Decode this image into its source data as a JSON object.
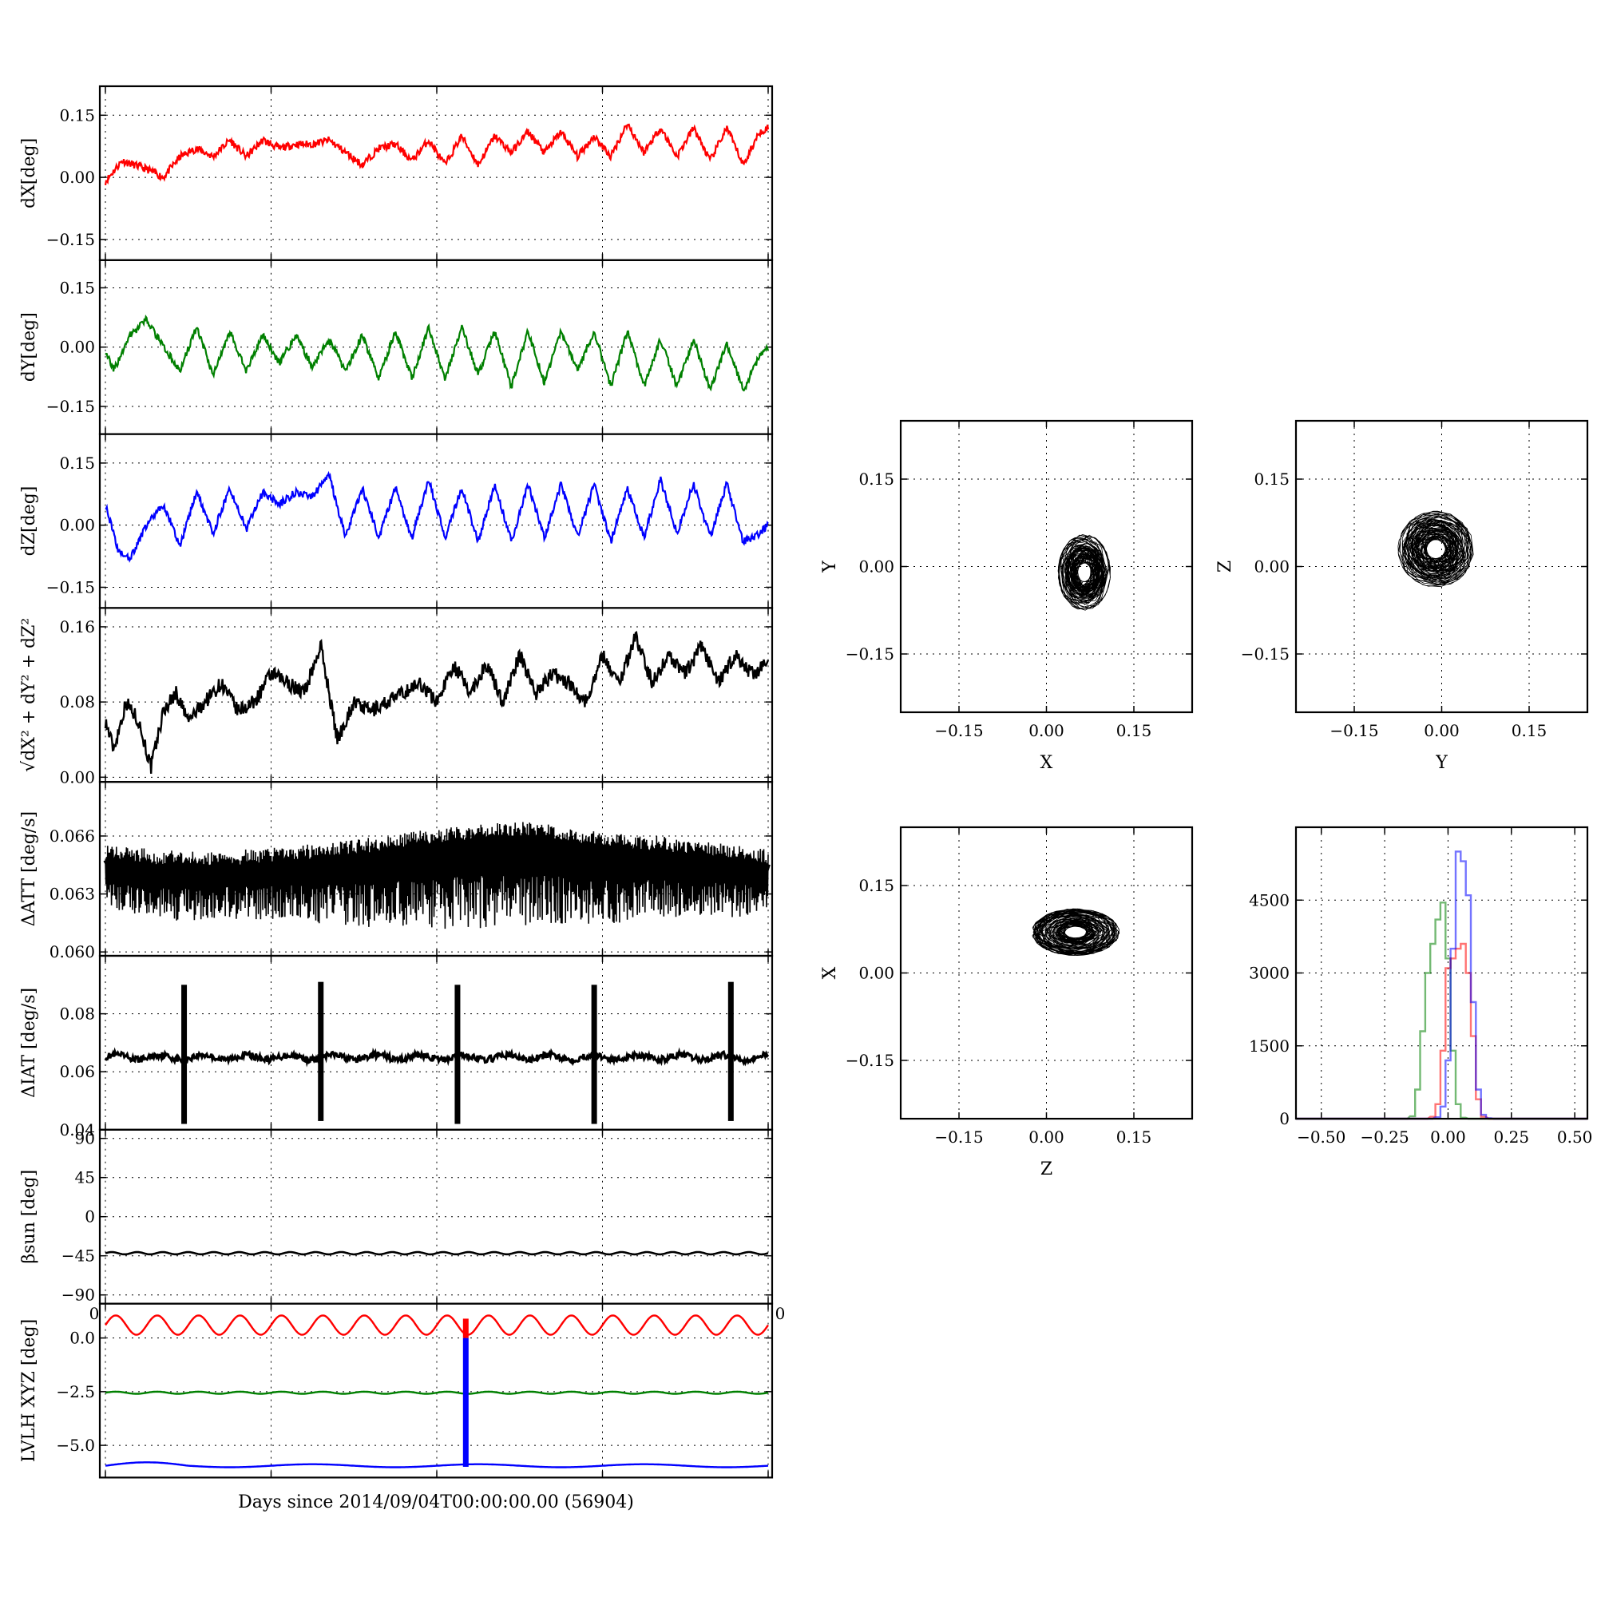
{
  "figure": {
    "x_axis_label": "Days since 2014/09/04T00:00:00.00 (56904)"
  },
  "chart_data": [
    {
      "id": "dX",
      "type": "line",
      "ylabel": "dX[deg]",
      "ylim": [
        -0.2,
        0.22
      ],
      "yticks": [
        -0.15,
        0.0,
        0.15
      ],
      "ytick_labels": [
        "−0.15",
        "0.00",
        "0.15"
      ],
      "xlim": [
        0,
        8
      ],
      "grid": true,
      "color": "#ff0000",
      "x": [
        0,
        0.2,
        0.5,
        0.7,
        0.9,
        1.1,
        1.3,
        1.5,
        1.7,
        1.9,
        2.1,
        2.3,
        2.5,
        2.7,
        2.9,
        3.1,
        3.3,
        3.5,
        3.7,
        3.9,
        4.1,
        4.3,
        4.5,
        4.7,
        4.9,
        5.1,
        5.3,
        5.5,
        5.7,
        5.9,
        6.1,
        6.3,
        6.5,
        6.7,
        6.9,
        7.1,
        7.3,
        7.5,
        7.7,
        7.9,
        8.0
      ],
      "y": [
        -0.01,
        0.04,
        0.02,
        0.0,
        0.05,
        0.07,
        0.05,
        0.09,
        0.05,
        0.09,
        0.07,
        0.08,
        0.08,
        0.09,
        0.06,
        0.03,
        0.07,
        0.08,
        0.04,
        0.09,
        0.03,
        0.1,
        0.03,
        0.1,
        0.06,
        0.11,
        0.06,
        0.11,
        0.05,
        0.1,
        0.05,
        0.13,
        0.06,
        0.12,
        0.05,
        0.12,
        0.04,
        0.12,
        0.03,
        0.11,
        0.12
      ]
    },
    {
      "id": "dY",
      "type": "line",
      "ylabel": "dY[deg]",
      "ylim": [
        -0.22,
        0.22
      ],
      "yticks": [
        -0.15,
        0.0,
        0.15
      ],
      "ytick_labels": [
        "−0.15",
        "0.00",
        "0.15"
      ],
      "xlim": [
        0,
        8
      ],
      "grid": true,
      "color": "#008000",
      "x": [
        0,
        0.1,
        0.3,
        0.5,
        0.7,
        0.9,
        1.1,
        1.3,
        1.5,
        1.7,
        1.9,
        2.1,
        2.3,
        2.5,
        2.7,
        2.9,
        3.1,
        3.3,
        3.5,
        3.7,
        3.9,
        4.1,
        4.3,
        4.5,
        4.7,
        4.9,
        5.1,
        5.3,
        5.5,
        5.7,
        5.9,
        6.1,
        6.3,
        6.5,
        6.7,
        6.9,
        7.1,
        7.3,
        7.5,
        7.7,
        7.9,
        8.0
      ],
      "y": [
        -0.01,
        -0.06,
        0.03,
        0.07,
        0.0,
        -0.06,
        0.05,
        -0.07,
        0.04,
        -0.06,
        0.03,
        -0.04,
        0.03,
        -0.05,
        0.02,
        -0.06,
        0.03,
        -0.08,
        0.04,
        -0.08,
        0.05,
        -0.08,
        0.05,
        -0.07,
        0.04,
        -0.1,
        0.04,
        -0.09,
        0.04,
        -0.06,
        0.04,
        -0.1,
        0.04,
        -0.1,
        0.02,
        -0.1,
        0.02,
        -0.11,
        0.01,
        -0.11,
        -0.02,
        0.0
      ]
    },
    {
      "id": "dZ",
      "type": "line",
      "ylabel": "dZ[deg]",
      "ylim": [
        -0.2,
        0.22
      ],
      "yticks": [
        -0.15,
        0.0,
        0.15
      ],
      "ytick_labels": [
        "−0.15",
        "0.00",
        "0.15"
      ],
      "xlim": [
        0,
        8
      ],
      "grid": true,
      "color": "#0000ff",
      "x": [
        0,
        0.15,
        0.3,
        0.5,
        0.7,
        0.9,
        1.1,
        1.3,
        1.5,
        1.7,
        1.9,
        2.1,
        2.3,
        2.5,
        2.7,
        2.9,
        3.1,
        3.3,
        3.5,
        3.7,
        3.9,
        4.1,
        4.3,
        4.5,
        4.7,
        4.9,
        5.1,
        5.3,
        5.5,
        5.7,
        5.9,
        6.1,
        6.3,
        6.5,
        6.7,
        6.9,
        7.1,
        7.3,
        7.5,
        7.7,
        7.9,
        8.0
      ],
      "y": [
        0.05,
        -0.06,
        -0.08,
        0.0,
        0.05,
        -0.05,
        0.08,
        -0.02,
        0.09,
        -0.01,
        0.08,
        0.05,
        0.08,
        0.07,
        0.12,
        -0.03,
        0.09,
        -0.03,
        0.09,
        -0.03,
        0.11,
        -0.03,
        0.09,
        -0.04,
        0.1,
        -0.04,
        0.1,
        -0.03,
        0.1,
        -0.03,
        0.1,
        -0.04,
        0.09,
        -0.03,
        0.11,
        -0.02,
        0.1,
        -0.03,
        0.1,
        -0.04,
        -0.02,
        0.0
      ]
    },
    {
      "id": "dR",
      "type": "line",
      "ylabel": "√dX² + dY² + dZ²",
      "ylim": [
        -0.005,
        0.18
      ],
      "yticks": [
        0.0,
        0.08,
        0.16
      ],
      "ytick_labels": [
        "0.00",
        "0.08",
        "0.16"
      ],
      "xlim": [
        0,
        8
      ],
      "grid": true,
      "color": "#000000",
      "x": [
        0,
        0.1,
        0.25,
        0.4,
        0.55,
        0.7,
        0.85,
        1.0,
        1.2,
        1.4,
        1.6,
        1.8,
        2.0,
        2.2,
        2.4,
        2.6,
        2.8,
        3.0,
        3.2,
        3.4,
        3.6,
        3.8,
        4.0,
        4.2,
        4.4,
        4.6,
        4.8,
        5.0,
        5.2,
        5.4,
        5.6,
        5.8,
        6.0,
        6.2,
        6.4,
        6.6,
        6.8,
        7.0,
        7.2,
        7.4,
        7.6,
        7.8,
        8.0
      ],
      "y": [
        0.06,
        0.03,
        0.08,
        0.06,
        0.01,
        0.07,
        0.09,
        0.06,
        0.08,
        0.1,
        0.07,
        0.08,
        0.11,
        0.1,
        0.09,
        0.14,
        0.04,
        0.08,
        0.07,
        0.08,
        0.09,
        0.1,
        0.08,
        0.12,
        0.09,
        0.12,
        0.08,
        0.13,
        0.09,
        0.11,
        0.1,
        0.08,
        0.13,
        0.1,
        0.15,
        0.1,
        0.13,
        0.11,
        0.14,
        0.1,
        0.13,
        0.11,
        0.12
      ]
    },
    {
      "id": "dATT",
      "type": "line",
      "ylabel": "ΔATT [deg/s]",
      "ylim": [
        0.0598,
        0.0688
      ],
      "yticks": [
        0.06,
        0.063,
        0.066
      ],
      "ytick_labels": [
        "0.060",
        "0.063",
        "0.066"
      ],
      "xlim": [
        0,
        8
      ],
      "grid": true,
      "color": "#000000",
      "style": "dense oscillation",
      "x": [
        0,
        1,
        2,
        3,
        4,
        5,
        6,
        7,
        8
      ],
      "y_upper": [
        0.0655,
        0.0652,
        0.0654,
        0.0658,
        0.0664,
        0.0668,
        0.0662,
        0.0659,
        0.0653
      ],
      "y_lower": [
        0.0618,
        0.0616,
        0.0617,
        0.0613,
        0.0611,
        0.0613,
        0.0614,
        0.0616,
        0.0619
      ]
    },
    {
      "id": "dIAT",
      "type": "line",
      "ylabel": "ΔIAT [deg/s]",
      "ylim": [
        0.04,
        0.1
      ],
      "yticks": [
        0.04,
        0.06,
        0.08
      ],
      "ytick_labels": [
        "0.04",
        "0.06",
        "0.08"
      ],
      "xlim": [
        0,
        8
      ],
      "grid": true,
      "color": "#000000",
      "baseline": 0.065,
      "spikes": [
        {
          "x": 0.95,
          "min": 0.042,
          "max": 0.09
        },
        {
          "x": 2.6,
          "min": 0.043,
          "max": 0.091
        },
        {
          "x": 4.25,
          "min": 0.042,
          "max": 0.09
        },
        {
          "x": 5.9,
          "min": 0.042,
          "max": 0.09
        },
        {
          "x": 7.55,
          "min": 0.043,
          "max": 0.091
        }
      ]
    },
    {
      "id": "beta",
      "type": "line",
      "ylabel": "βsun [deg]",
      "ylim": [
        -100,
        100
      ],
      "yticks": [
        -90,
        -45,
        0,
        45,
        90
      ],
      "ytick_labels": [
        "−90",
        "−45",
        "0",
        "45",
        "90"
      ],
      "xlim": [
        0,
        8
      ],
      "grid": true,
      "color": "#000000",
      "mean": -42,
      "amplitude": 1.3,
      "cycles": 26
    },
    {
      "id": "lvlh",
      "type": "line",
      "ylabel": "LVLH XYZ [deg]",
      "ylim": [
        -6.5,
        1.6
      ],
      "yticks": [
        -5.0,
        -2.5,
        0.0
      ],
      "ytick_labels": [
        "−5.0",
        "−2.5",
        "0.0"
      ],
      "xlim": [
        0,
        8
      ],
      "grid": true,
      "series": [
        {
          "color": "#ff0000",
          "mean": 0.6,
          "amplitude": 0.45,
          "cycles": 16
        },
        {
          "color": "#008000",
          "mean": -2.55,
          "amplitude": 0.05,
          "cycles": 16
        },
        {
          "color": "#0000ff",
          "mean": -5.95,
          "amplitude": 0.1,
          "cycles": 4
        }
      ],
      "marker_x": 4.35
    },
    {
      "id": "xy",
      "type": "scatter",
      "xlabel": "X",
      "ylabel": "Y",
      "xlim": [
        -0.25,
        0.25
      ],
      "ylim": [
        -0.25,
        0.25
      ],
      "xticks": [
        -0.15,
        0.0,
        0.15
      ],
      "xtick_labels": [
        "−0.15",
        "0.00",
        "0.15"
      ],
      "yticks": [
        -0.15,
        0.0,
        0.15
      ],
      "ytick_labels": [
        "−0.15",
        "0.00",
        "0.15"
      ],
      "grid": true,
      "color": "#000000",
      "cloud_center": [
        0.065,
        -0.01
      ],
      "cloud_radius": [
        0.045,
        0.065
      ]
    },
    {
      "id": "yz",
      "type": "scatter",
      "xlabel": "Y",
      "ylabel": "Z",
      "xlim": [
        -0.25,
        0.25
      ],
      "ylim": [
        -0.25,
        0.25
      ],
      "xticks": [
        -0.15,
        0.0,
        0.15
      ],
      "xtick_labels": [
        "−0.15",
        "0.00",
        "0.15"
      ],
      "yticks": [
        -0.15,
        0.0,
        0.15
      ],
      "ytick_labels": [
        "−0.15",
        "0.00",
        "0.15"
      ],
      "grid": true,
      "color": "#000000",
      "cloud_center": [
        -0.01,
        0.03
      ],
      "cloud_radius": [
        0.065,
        0.065
      ]
    },
    {
      "id": "zx",
      "type": "scatter",
      "xlabel": "Z",
      "ylabel": "X",
      "xlim": [
        -0.25,
        0.25
      ],
      "ylim": [
        -0.25,
        0.25
      ],
      "xticks": [
        -0.15,
        0.0,
        0.15
      ],
      "xtick_labels": [
        "−0.15",
        "0.00",
        "0.15"
      ],
      "yticks": [
        -0.15,
        0.0,
        0.15
      ],
      "ytick_labels": [
        "−0.15",
        "0.00",
        "0.15"
      ],
      "grid": true,
      "color": "#000000",
      "cloud_center": [
        0.05,
        0.07
      ],
      "cloud_radius": [
        0.075,
        0.04
      ]
    },
    {
      "id": "hist",
      "type": "histogram",
      "xlim": [
        -0.6,
        0.55
      ],
      "ylim": [
        0,
        6000
      ],
      "xticks": [
        -0.5,
        -0.25,
        0.0,
        0.25,
        0.5
      ],
      "xtick_labels": [
        "−0.50",
        "−0.25",
        "0.00",
        "0.25",
        "0.50"
      ],
      "yticks": [
        0,
        1500,
        3000,
        4500
      ],
      "ytick_labels": [
        "0",
        "1500",
        "3000",
        "4500"
      ],
      "grid": true,
      "series": [
        {
          "color": "#008000",
          "x": [
            -0.14,
            -0.12,
            -0.1,
            -0.08,
            -0.06,
            -0.04,
            -0.02,
            0.0,
            0.02,
            0.04,
            0.06
          ],
          "counts": [
            50,
            600,
            1800,
            3000,
            3600,
            4100,
            4450,
            3300,
            1400,
            300,
            20
          ]
        },
        {
          "color": "#ff0000",
          "x": [
            -0.06,
            -0.04,
            -0.02,
            0.0,
            0.02,
            0.04,
            0.06,
            0.08,
            0.1,
            0.12,
            0.14
          ],
          "counts": [
            40,
            300,
            1400,
            3100,
            3300,
            3500,
            3600,
            3000,
            1700,
            400,
            40
          ]
        },
        {
          "color": "#0000ff",
          "x": [
            -0.04,
            -0.02,
            0.0,
            0.02,
            0.04,
            0.06,
            0.08,
            0.1,
            0.12,
            0.14,
            0.16
          ],
          "counts": [
            30,
            250,
            1200,
            3500,
            5500,
            5300,
            4600,
            2400,
            600,
            80,
            10
          ]
        }
      ]
    }
  ]
}
